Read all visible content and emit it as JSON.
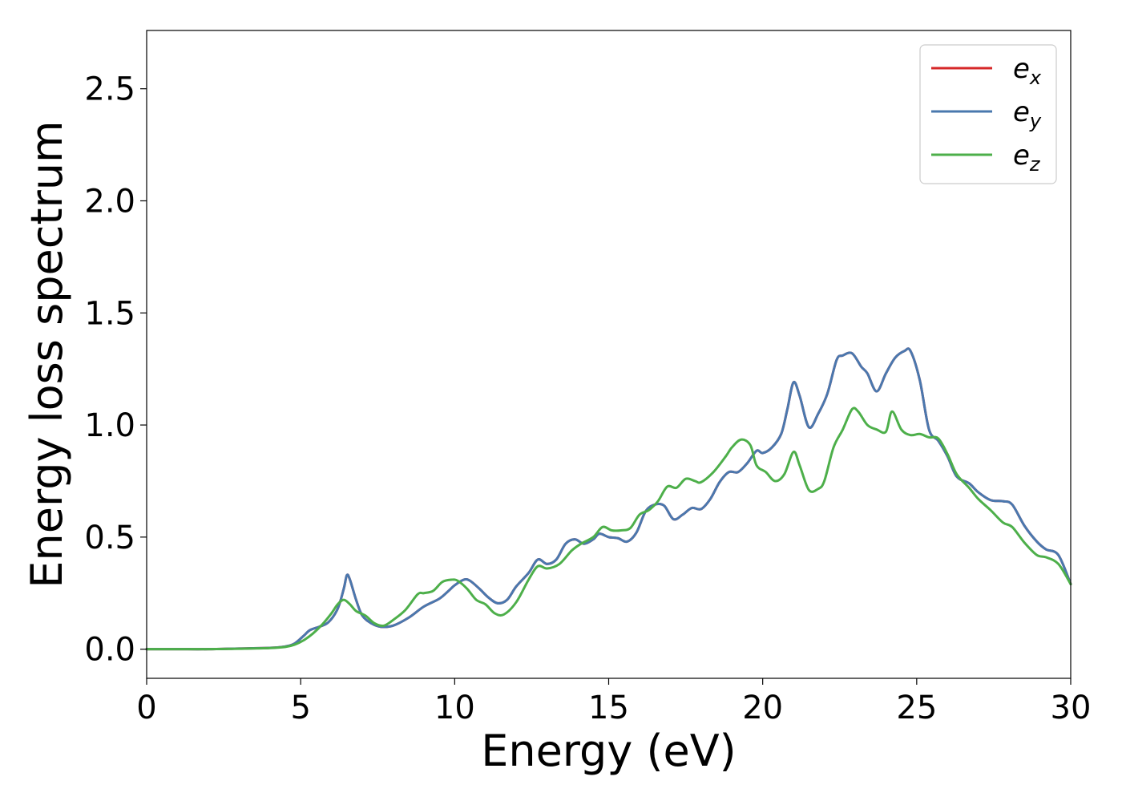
{
  "chart_data": {
    "type": "line",
    "title": "",
    "xlabel": "Energy (eV)",
    "ylabel": "Energy loss spectrum",
    "xlim": [
      0,
      30
    ],
    "ylim": [
      -0.13,
      2.76
    ],
    "xticks": [
      0,
      5,
      10,
      15,
      20,
      25,
      30
    ],
    "xtick_labels": [
      "0",
      "5",
      "10",
      "15",
      "20",
      "25",
      "30"
    ],
    "yticks": [
      0.0,
      0.5,
      1.0,
      1.5,
      2.0,
      2.5
    ],
    "ytick_labels": [
      "0.0",
      "0.5",
      "1.0",
      "1.5",
      "2.0",
      "2.5"
    ],
    "grid": false,
    "legend_position": "top-right",
    "series": [
      {
        "name": "e",
        "subscript": "x",
        "color": "#d62728",
        "points": [
          [
            0,
            0
          ],
          [
            1,
            0
          ],
          [
            2,
            0
          ],
          [
            3,
            0.003
          ],
          [
            4,
            0.006
          ],
          [
            4.5,
            0.012
          ],
          [
            4.8,
            0.025
          ],
          [
            5.1,
            0.06
          ],
          [
            5.3,
            0.085
          ],
          [
            5.6,
            0.1
          ],
          [
            5.9,
            0.12
          ],
          [
            6.2,
            0.18
          ],
          [
            6.4,
            0.27
          ],
          [
            6.5,
            0.33
          ],
          [
            6.6,
            0.31
          ],
          [
            6.8,
            0.22
          ],
          [
            7.0,
            0.15
          ],
          [
            7.3,
            0.115
          ],
          [
            7.6,
            0.1
          ],
          [
            8.0,
            0.105
          ],
          [
            8.5,
            0.14
          ],
          [
            9.0,
            0.19
          ],
          [
            9.5,
            0.225
          ],
          [
            9.8,
            0.26
          ],
          [
            10.0,
            0.285
          ],
          [
            10.3,
            0.31
          ],
          [
            10.5,
            0.305
          ],
          [
            10.8,
            0.27
          ],
          [
            11.1,
            0.23
          ],
          [
            11.4,
            0.205
          ],
          [
            11.7,
            0.22
          ],
          [
            12.0,
            0.28
          ],
          [
            12.4,
            0.34
          ],
          [
            12.7,
            0.4
          ],
          [
            13.0,
            0.38
          ],
          [
            13.3,
            0.4
          ],
          [
            13.6,
            0.47
          ],
          [
            13.9,
            0.49
          ],
          [
            14.2,
            0.47
          ],
          [
            14.5,
            0.49
          ],
          [
            14.7,
            0.515
          ],
          [
            15.0,
            0.5
          ],
          [
            15.3,
            0.495
          ],
          [
            15.6,
            0.48
          ],
          [
            15.9,
            0.52
          ],
          [
            16.2,
            0.615
          ],
          [
            16.5,
            0.645
          ],
          [
            16.8,
            0.64
          ],
          [
            17.1,
            0.58
          ],
          [
            17.4,
            0.6
          ],
          [
            17.7,
            0.63
          ],
          [
            18.0,
            0.625
          ],
          [
            18.3,
            0.67
          ],
          [
            18.6,
            0.745
          ],
          [
            18.9,
            0.79
          ],
          [
            19.2,
            0.79
          ],
          [
            19.5,
            0.83
          ],
          [
            19.8,
            0.885
          ],
          [
            20.0,
            0.875
          ],
          [
            20.3,
            0.9
          ],
          [
            20.6,
            0.96
          ],
          [
            20.8,
            1.07
          ],
          [
            21.0,
            1.19
          ],
          [
            21.2,
            1.13
          ],
          [
            21.5,
            0.99
          ],
          [
            21.8,
            1.05
          ],
          [
            22.1,
            1.14
          ],
          [
            22.4,
            1.29
          ],
          [
            22.6,
            1.31
          ],
          [
            22.9,
            1.32
          ],
          [
            23.2,
            1.26
          ],
          [
            23.4,
            1.23
          ],
          [
            23.7,
            1.15
          ],
          [
            24.0,
            1.23
          ],
          [
            24.3,
            1.3
          ],
          [
            24.6,
            1.33
          ],
          [
            24.8,
            1.33
          ],
          [
            25.1,
            1.2
          ],
          [
            25.4,
            0.98
          ],
          [
            25.7,
            0.93
          ],
          [
            26.0,
            0.86
          ],
          [
            26.3,
            0.77
          ],
          [
            26.7,
            0.74
          ],
          [
            27.0,
            0.7
          ],
          [
            27.4,
            0.665
          ],
          [
            27.8,
            0.66
          ],
          [
            28.1,
            0.645
          ],
          [
            28.5,
            0.55
          ],
          [
            28.9,
            0.48
          ],
          [
            29.2,
            0.445
          ],
          [
            29.6,
            0.42
          ],
          [
            30.0,
            0.29
          ]
        ]
      },
      {
        "name": "e",
        "subscript": "y",
        "color": "#4a78ae",
        "points": [
          [
            0,
            0
          ],
          [
            1,
            0
          ],
          [
            2,
            0
          ],
          [
            3,
            0.003
          ],
          [
            4,
            0.006
          ],
          [
            4.5,
            0.012
          ],
          [
            4.8,
            0.025
          ],
          [
            5.1,
            0.06
          ],
          [
            5.3,
            0.085
          ],
          [
            5.6,
            0.1
          ],
          [
            5.9,
            0.12
          ],
          [
            6.2,
            0.18
          ],
          [
            6.4,
            0.27
          ],
          [
            6.5,
            0.33
          ],
          [
            6.6,
            0.31
          ],
          [
            6.8,
            0.22
          ],
          [
            7.0,
            0.15
          ],
          [
            7.3,
            0.115
          ],
          [
            7.6,
            0.1
          ],
          [
            8.0,
            0.105
          ],
          [
            8.5,
            0.14
          ],
          [
            9.0,
            0.19
          ],
          [
            9.5,
            0.225
          ],
          [
            9.8,
            0.26
          ],
          [
            10.0,
            0.285
          ],
          [
            10.3,
            0.31
          ],
          [
            10.5,
            0.305
          ],
          [
            10.8,
            0.27
          ],
          [
            11.1,
            0.23
          ],
          [
            11.4,
            0.205
          ],
          [
            11.7,
            0.22
          ],
          [
            12.0,
            0.28
          ],
          [
            12.4,
            0.34
          ],
          [
            12.7,
            0.4
          ],
          [
            13.0,
            0.38
          ],
          [
            13.3,
            0.4
          ],
          [
            13.6,
            0.47
          ],
          [
            13.9,
            0.49
          ],
          [
            14.2,
            0.47
          ],
          [
            14.5,
            0.49
          ],
          [
            14.7,
            0.515
          ],
          [
            15.0,
            0.5
          ],
          [
            15.3,
            0.495
          ],
          [
            15.6,
            0.48
          ],
          [
            15.9,
            0.52
          ],
          [
            16.2,
            0.615
          ],
          [
            16.5,
            0.645
          ],
          [
            16.8,
            0.64
          ],
          [
            17.1,
            0.58
          ],
          [
            17.4,
            0.6
          ],
          [
            17.7,
            0.63
          ],
          [
            18.0,
            0.625
          ],
          [
            18.3,
            0.67
          ],
          [
            18.6,
            0.745
          ],
          [
            18.9,
            0.79
          ],
          [
            19.2,
            0.79
          ],
          [
            19.5,
            0.83
          ],
          [
            19.8,
            0.885
          ],
          [
            20.0,
            0.875
          ],
          [
            20.3,
            0.9
          ],
          [
            20.6,
            0.96
          ],
          [
            20.8,
            1.07
          ],
          [
            21.0,
            1.19
          ],
          [
            21.2,
            1.13
          ],
          [
            21.5,
            0.99
          ],
          [
            21.8,
            1.05
          ],
          [
            22.1,
            1.14
          ],
          [
            22.4,
            1.29
          ],
          [
            22.6,
            1.31
          ],
          [
            22.9,
            1.32
          ],
          [
            23.2,
            1.26
          ],
          [
            23.4,
            1.23
          ],
          [
            23.7,
            1.15
          ],
          [
            24.0,
            1.23
          ],
          [
            24.3,
            1.3
          ],
          [
            24.6,
            1.33
          ],
          [
            24.8,
            1.33
          ],
          [
            25.1,
            1.2
          ],
          [
            25.4,
            0.98
          ],
          [
            25.7,
            0.93
          ],
          [
            26.0,
            0.86
          ],
          [
            26.3,
            0.77
          ],
          [
            26.7,
            0.74
          ],
          [
            27.0,
            0.7
          ],
          [
            27.4,
            0.665
          ],
          [
            27.8,
            0.66
          ],
          [
            28.1,
            0.645
          ],
          [
            28.5,
            0.55
          ],
          [
            28.9,
            0.48
          ],
          [
            29.2,
            0.445
          ],
          [
            29.6,
            0.42
          ],
          [
            30.0,
            0.29
          ]
        ]
      },
      {
        "name": "e",
        "subscript": "z",
        "color": "#4daf4a",
        "points": [
          [
            0,
            0
          ],
          [
            1,
            0
          ],
          [
            2,
            0
          ],
          [
            3,
            0.002
          ],
          [
            4,
            0.005
          ],
          [
            4.5,
            0.01
          ],
          [
            4.8,
            0.02
          ],
          [
            5.1,
            0.04
          ],
          [
            5.4,
            0.07
          ],
          [
            5.7,
            0.11
          ],
          [
            6.0,
            0.16
          ],
          [
            6.2,
            0.2
          ],
          [
            6.4,
            0.22
          ],
          [
            6.6,
            0.2
          ],
          [
            6.8,
            0.17
          ],
          [
            7.1,
            0.15
          ],
          [
            7.4,
            0.115
          ],
          [
            7.7,
            0.105
          ],
          [
            8.0,
            0.13
          ],
          [
            8.4,
            0.175
          ],
          [
            8.8,
            0.245
          ],
          [
            9.0,
            0.25
          ],
          [
            9.3,
            0.26
          ],
          [
            9.6,
            0.3
          ],
          [
            9.9,
            0.31
          ],
          [
            10.1,
            0.305
          ],
          [
            10.4,
            0.27
          ],
          [
            10.7,
            0.22
          ],
          [
            11.0,
            0.2
          ],
          [
            11.3,
            0.16
          ],
          [
            11.6,
            0.155
          ],
          [
            12.0,
            0.21
          ],
          [
            12.4,
            0.31
          ],
          [
            12.7,
            0.37
          ],
          [
            13.0,
            0.36
          ],
          [
            13.4,
            0.38
          ],
          [
            13.8,
            0.44
          ],
          [
            14.1,
            0.47
          ],
          [
            14.5,
            0.5
          ],
          [
            14.8,
            0.545
          ],
          [
            15.1,
            0.53
          ],
          [
            15.4,
            0.53
          ],
          [
            15.7,
            0.54
          ],
          [
            16.0,
            0.6
          ],
          [
            16.3,
            0.62
          ],
          [
            16.6,
            0.66
          ],
          [
            16.9,
            0.725
          ],
          [
            17.2,
            0.72
          ],
          [
            17.5,
            0.76
          ],
          [
            17.8,
            0.75
          ],
          [
            18.0,
            0.745
          ],
          [
            18.4,
            0.79
          ],
          [
            18.8,
            0.86
          ],
          [
            19.0,
            0.9
          ],
          [
            19.3,
            0.935
          ],
          [
            19.6,
            0.91
          ],
          [
            19.8,
            0.82
          ],
          [
            20.1,
            0.79
          ],
          [
            20.4,
            0.75
          ],
          [
            20.7,
            0.78
          ],
          [
            21.0,
            0.88
          ],
          [
            21.2,
            0.82
          ],
          [
            21.5,
            0.71
          ],
          [
            21.8,
            0.715
          ],
          [
            22.0,
            0.75
          ],
          [
            22.3,
            0.9
          ],
          [
            22.6,
            0.98
          ],
          [
            22.9,
            1.07
          ],
          [
            23.1,
            1.06
          ],
          [
            23.4,
            1.0
          ],
          [
            23.7,
            0.98
          ],
          [
            24.0,
            0.97
          ],
          [
            24.2,
            1.06
          ],
          [
            24.5,
            0.98
          ],
          [
            24.8,
            0.955
          ],
          [
            25.1,
            0.96
          ],
          [
            25.4,
            0.945
          ],
          [
            25.7,
            0.94
          ],
          [
            26.0,
            0.87
          ],
          [
            26.3,
            0.78
          ],
          [
            26.7,
            0.72
          ],
          [
            27.0,
            0.67
          ],
          [
            27.4,
            0.62
          ],
          [
            27.8,
            0.565
          ],
          [
            28.1,
            0.545
          ],
          [
            28.5,
            0.475
          ],
          [
            28.9,
            0.42
          ],
          [
            29.2,
            0.41
          ],
          [
            29.6,
            0.38
          ],
          [
            30.0,
            0.29
          ]
        ]
      }
    ]
  }
}
